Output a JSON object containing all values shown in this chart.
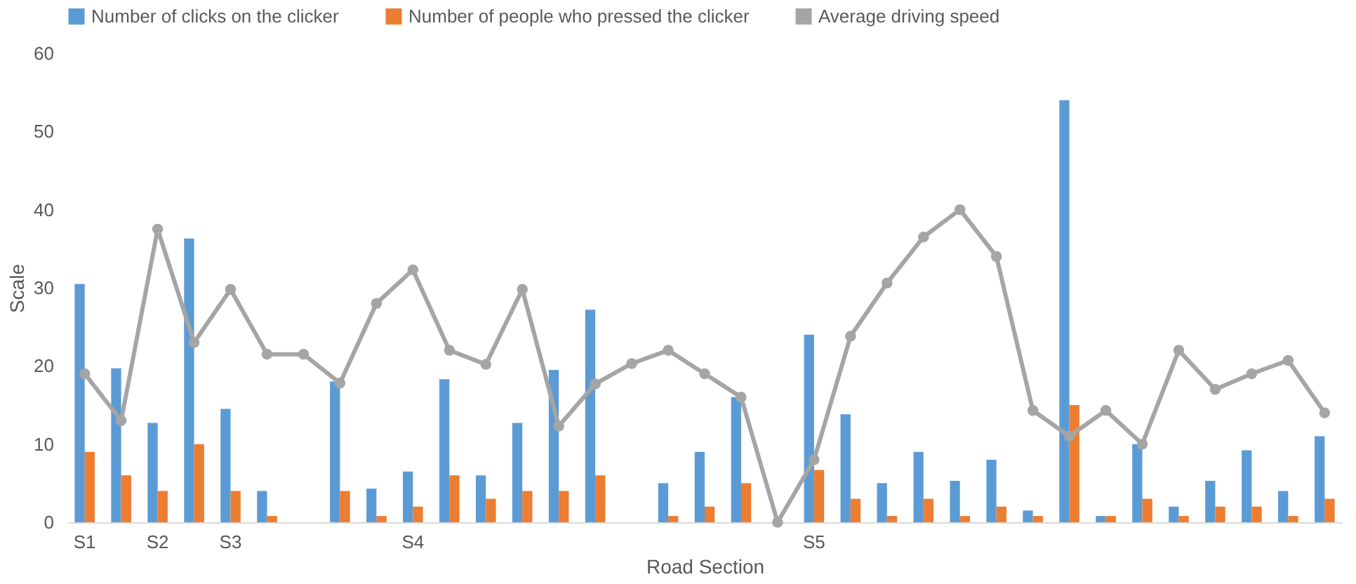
{
  "chart_data": {
    "type": "bar",
    "xlabel": "Road Section",
    "ylabel": "Scale",
    "categories": [
      "S1",
      null,
      "S2",
      null,
      "S3",
      null,
      null,
      null,
      null,
      "S4",
      null,
      null,
      null,
      null,
      null,
      null,
      null,
      null,
      null,
      null,
      "S5",
      null,
      null,
      null,
      null,
      null,
      null,
      null,
      null,
      null,
      null,
      null,
      null,
      null,
      null
    ],
    "series": [
      {
        "name": "Number of clicks on the clicker",
        "color": "#5b9bd5",
        "values": [
          30.5,
          19.7,
          12.7,
          36.3,
          14.5,
          4,
          0,
          18,
          4.3,
          6.5,
          18.3,
          6,
          12.7,
          19.5,
          27.2,
          0,
          5,
          9,
          16,
          0,
          24,
          13.8,
          5,
          9,
          5.3,
          8,
          1.5,
          54,
          0.8,
          10,
          2,
          5.3,
          9.2,
          4,
          11
        ]
      },
      {
        "name": "Number of people who pressed the clicker",
        "color": "#ed7d31",
        "values": [
          9,
          6,
          4,
          10,
          4,
          0.8,
          0,
          4,
          0.8,
          2,
          6,
          3,
          4,
          4,
          6,
          0,
          0.8,
          2,
          5,
          0,
          6.7,
          3,
          0.8,
          3,
          0.8,
          2,
          0.8,
          15,
          0.8,
          3,
          0.8,
          2,
          2,
          0.8,
          3
        ]
      },
      {
        "name": "Average driving speed",
        "type": "line",
        "color": "#a5a5a5",
        "marker": "circle",
        "values": [
          19,
          13,
          37.5,
          23,
          29.8,
          21.5,
          21.5,
          17.8,
          28,
          32.3,
          22,
          20.2,
          29.8,
          12.3,
          17.7,
          20.3,
          22,
          19,
          16,
          0,
          8,
          23.8,
          30.6,
          36.5,
          40,
          34,
          14.3,
          11,
          14.3,
          10,
          22,
          17,
          19,
          20.7,
          14
        ]
      }
    ],
    "ylim": [
      0,
      60
    ],
    "yticks": [
      0,
      10,
      20,
      30,
      40,
      50,
      60
    ],
    "grid": false,
    "legend": "top"
  }
}
